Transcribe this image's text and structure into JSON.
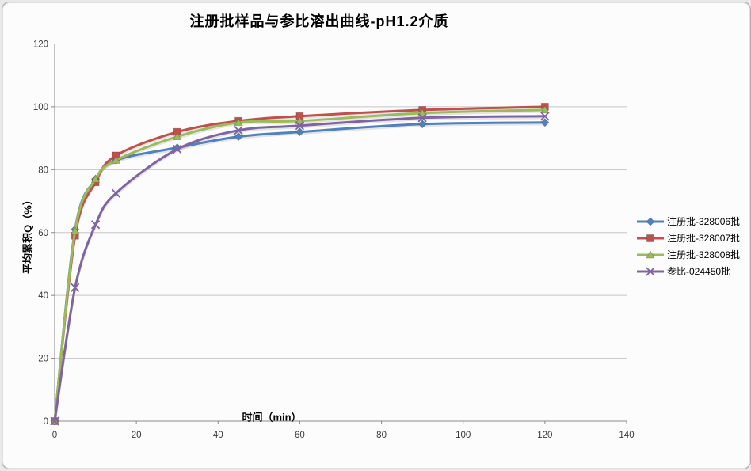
{
  "chart": {
    "title": "注册批样品与参比溶出曲线-pH1.2介质",
    "xlabel": "时间（min）",
    "ylabel": "平均累积Q（%）"
  },
  "chart_data": {
    "type": "line",
    "title": "注册批样品与参比溶出曲线-pH1.2介质",
    "xlabel": "时间（min）",
    "ylabel": "平均累积Q（%）",
    "x": [
      0,
      5,
      10,
      15,
      30,
      45,
      60,
      90,
      120
    ],
    "series": [
      {
        "name": "注册批-328006批",
        "color": "#4F81BD",
        "marker": "diamond",
        "values": [
          0,
          61,
          77,
          83,
          87,
          90.5,
          92,
          94.5,
          95
        ]
      },
      {
        "name": "注册批-328007批",
        "color": "#C0504D",
        "marker": "square",
        "values": [
          0,
          59,
          76,
          84.5,
          92,
          95.5,
          97,
          99,
          100
        ]
      },
      {
        "name": "注册批-328008批",
        "color": "#9BBB59",
        "marker": "triangle",
        "values": [
          0,
          60.5,
          77,
          83,
          90.5,
          95,
          95.5,
          98,
          99
        ]
      },
      {
        "name": "参比-024450批",
        "color": "#8064A2",
        "marker": "x",
        "values": [
          0,
          42.5,
          62.5,
          72.5,
          86.5,
          92.5,
          94,
          96.5,
          97
        ]
      }
    ],
    "xlim": [
      0,
      140
    ],
    "ylim": [
      0,
      120
    ],
    "x_ticks": [
      0,
      20,
      40,
      60,
      80,
      100,
      120,
      140
    ],
    "y_ticks": [
      0,
      20,
      40,
      60,
      80,
      100,
      120
    ],
    "grid": "horizontal",
    "smooth_lines": true,
    "legend_position": "right",
    "colors": {
      "grid": "#c6c6c6",
      "axis": "#8a8a8a",
      "tick_label": "#3a3a3a",
      "background": "#fcfcfc"
    }
  }
}
